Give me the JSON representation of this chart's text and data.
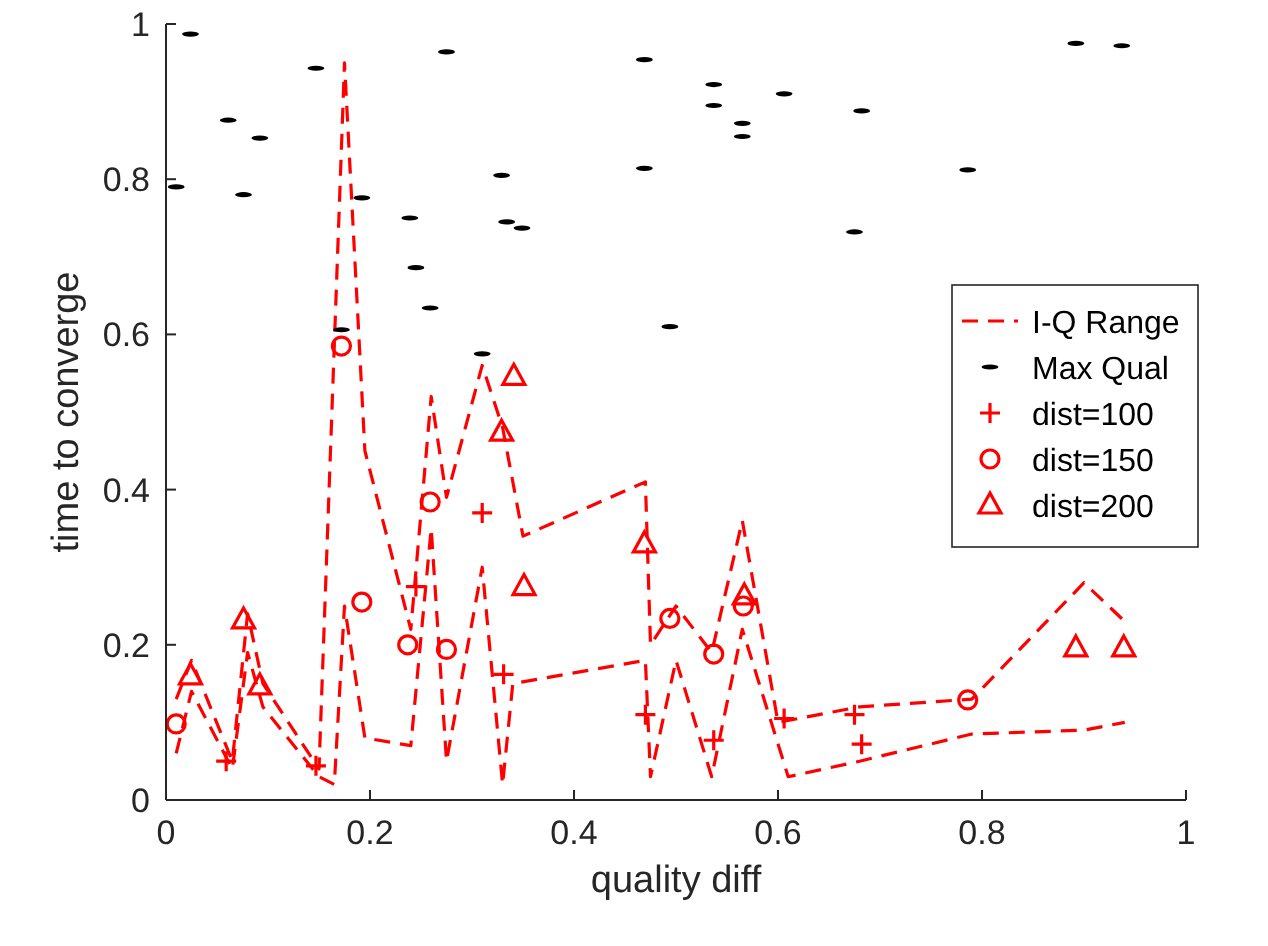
{
  "chart_data": {
    "type": "scatter",
    "xlabel": "quality diff",
    "ylabel": "time to converge",
    "xlim": [
      0,
      1
    ],
    "ylim": [
      0,
      1
    ],
    "xticks": [
      0,
      0.2,
      0.4,
      0.6,
      0.8,
      1
    ],
    "yticks": [
      0,
      0.2,
      0.4,
      0.6,
      0.8,
      1
    ],
    "grid": false,
    "legend": "right",
    "series": [
      {
        "name": "I-Q Range",
        "type": "line",
        "line_style": "dashed",
        "marker": "none",
        "color": "#ff0000",
        "x": [
          0.01,
          0.025,
          0.065,
          0.08,
          0.095,
          0.15,
          0.175,
          0.195,
          0.24,
          0.26,
          0.275,
          0.31,
          0.33,
          0.35,
          0.47,
          0.475,
          0.5,
          0.535,
          0.565,
          0.6,
          0.68,
          0.79,
          0.9,
          0.94
        ],
        "values": [
          0.13,
          0.18,
          0.05,
          0.24,
          0.15,
          0.04,
          0.95,
          0.45,
          0.22,
          0.52,
          0.39,
          0.56,
          0.48,
          0.34,
          0.41,
          0.2,
          0.25,
          0.19,
          0.36,
          0.1,
          0.12,
          0.13,
          0.28,
          0.23
        ]
      },
      {
        "type": "line",
        "line_style": "dashed",
        "marker": "none",
        "color": "#ff0000",
        "x": [
          0.01,
          0.025,
          0.065,
          0.08,
          0.095,
          0.15,
          0.165,
          0.175,
          0.195,
          0.24,
          0.26,
          0.275,
          0.31,
          0.33,
          0.34,
          0.47,
          0.475,
          0.5,
          0.535,
          0.565,
          0.61,
          0.68,
          0.79,
          0.9,
          0.94
        ],
        "values": [
          0.06,
          0.14,
          0.04,
          0.19,
          0.12,
          0.03,
          0.02,
          0.25,
          0.08,
          0.07,
          0.35,
          0.05,
          0.3,
          0.02,
          0.15,
          0.18,
          0.03,
          0.18,
          0.03,
          0.22,
          0.03,
          0.05,
          0.085,
          0.09,
          0.1
        ]
      },
      {
        "name": "Max Qual",
        "color": "#000000",
        "x": [
          0.024,
          0.147,
          0.275,
          0.469,
          0.061,
          0.092,
          0.01,
          0.076,
          0.192,
          0.329,
          0.469,
          0.239,
          0.334,
          0.349,
          0.245,
          0.259,
          0.172,
          0.31,
          0.494,
          0.892,
          0.937,
          0.537,
          0.537,
          0.606,
          0.565,
          0.565,
          0.682,
          0.786,
          0.675
        ],
        "values": [
          0.987,
          0.943,
          0.964,
          0.954,
          0.876,
          0.853,
          0.79,
          0.78,
          0.776,
          0.805,
          0.814,
          0.75,
          0.745,
          0.737,
          0.686,
          0.634,
          0.606,
          0.575,
          0.61,
          0.975,
          0.972,
          0.922,
          0.895,
          0.91,
          0.872,
          0.855,
          0.888,
          0.812,
          0.732
        ]
      },
      {
        "name": "dist=100",
        "marker": "cross",
        "color": "#ff0000",
        "x": [
          0.059,
          0.147,
          0.245,
          0.31,
          0.331,
          0.47,
          0.537,
          0.606,
          0.675,
          0.682
        ],
        "values": [
          0.05,
          0.044,
          0.275,
          0.37,
          0.162,
          0.11,
          0.077,
          0.105,
          0.11,
          0.072
        ]
      },
      {
        "name": "dist=150",
        "marker": "circle",
        "color": "#ff0000",
        "x": [
          0.01,
          0.172,
          0.192,
          0.259,
          0.237,
          0.275,
          0.494,
          0.537,
          0.566,
          0.786
        ],
        "values": [
          0.098,
          0.585,
          0.255,
          0.384,
          0.2,
          0.194,
          0.234,
          0.188,
          0.25,
          0.129
        ]
      },
      {
        "name": "dist=200",
        "marker": "triangle",
        "color": "#ff0000",
        "x": [
          0.024,
          0.076,
          0.092,
          0.341,
          0.329,
          0.351,
          0.469,
          0.567,
          0.892,
          0.939
        ],
        "values": [
          0.16,
          0.232,
          0.147,
          0.546,
          0.474,
          0.275,
          0.33,
          0.263,
          0.196,
          0.196
        ]
      }
    ]
  }
}
